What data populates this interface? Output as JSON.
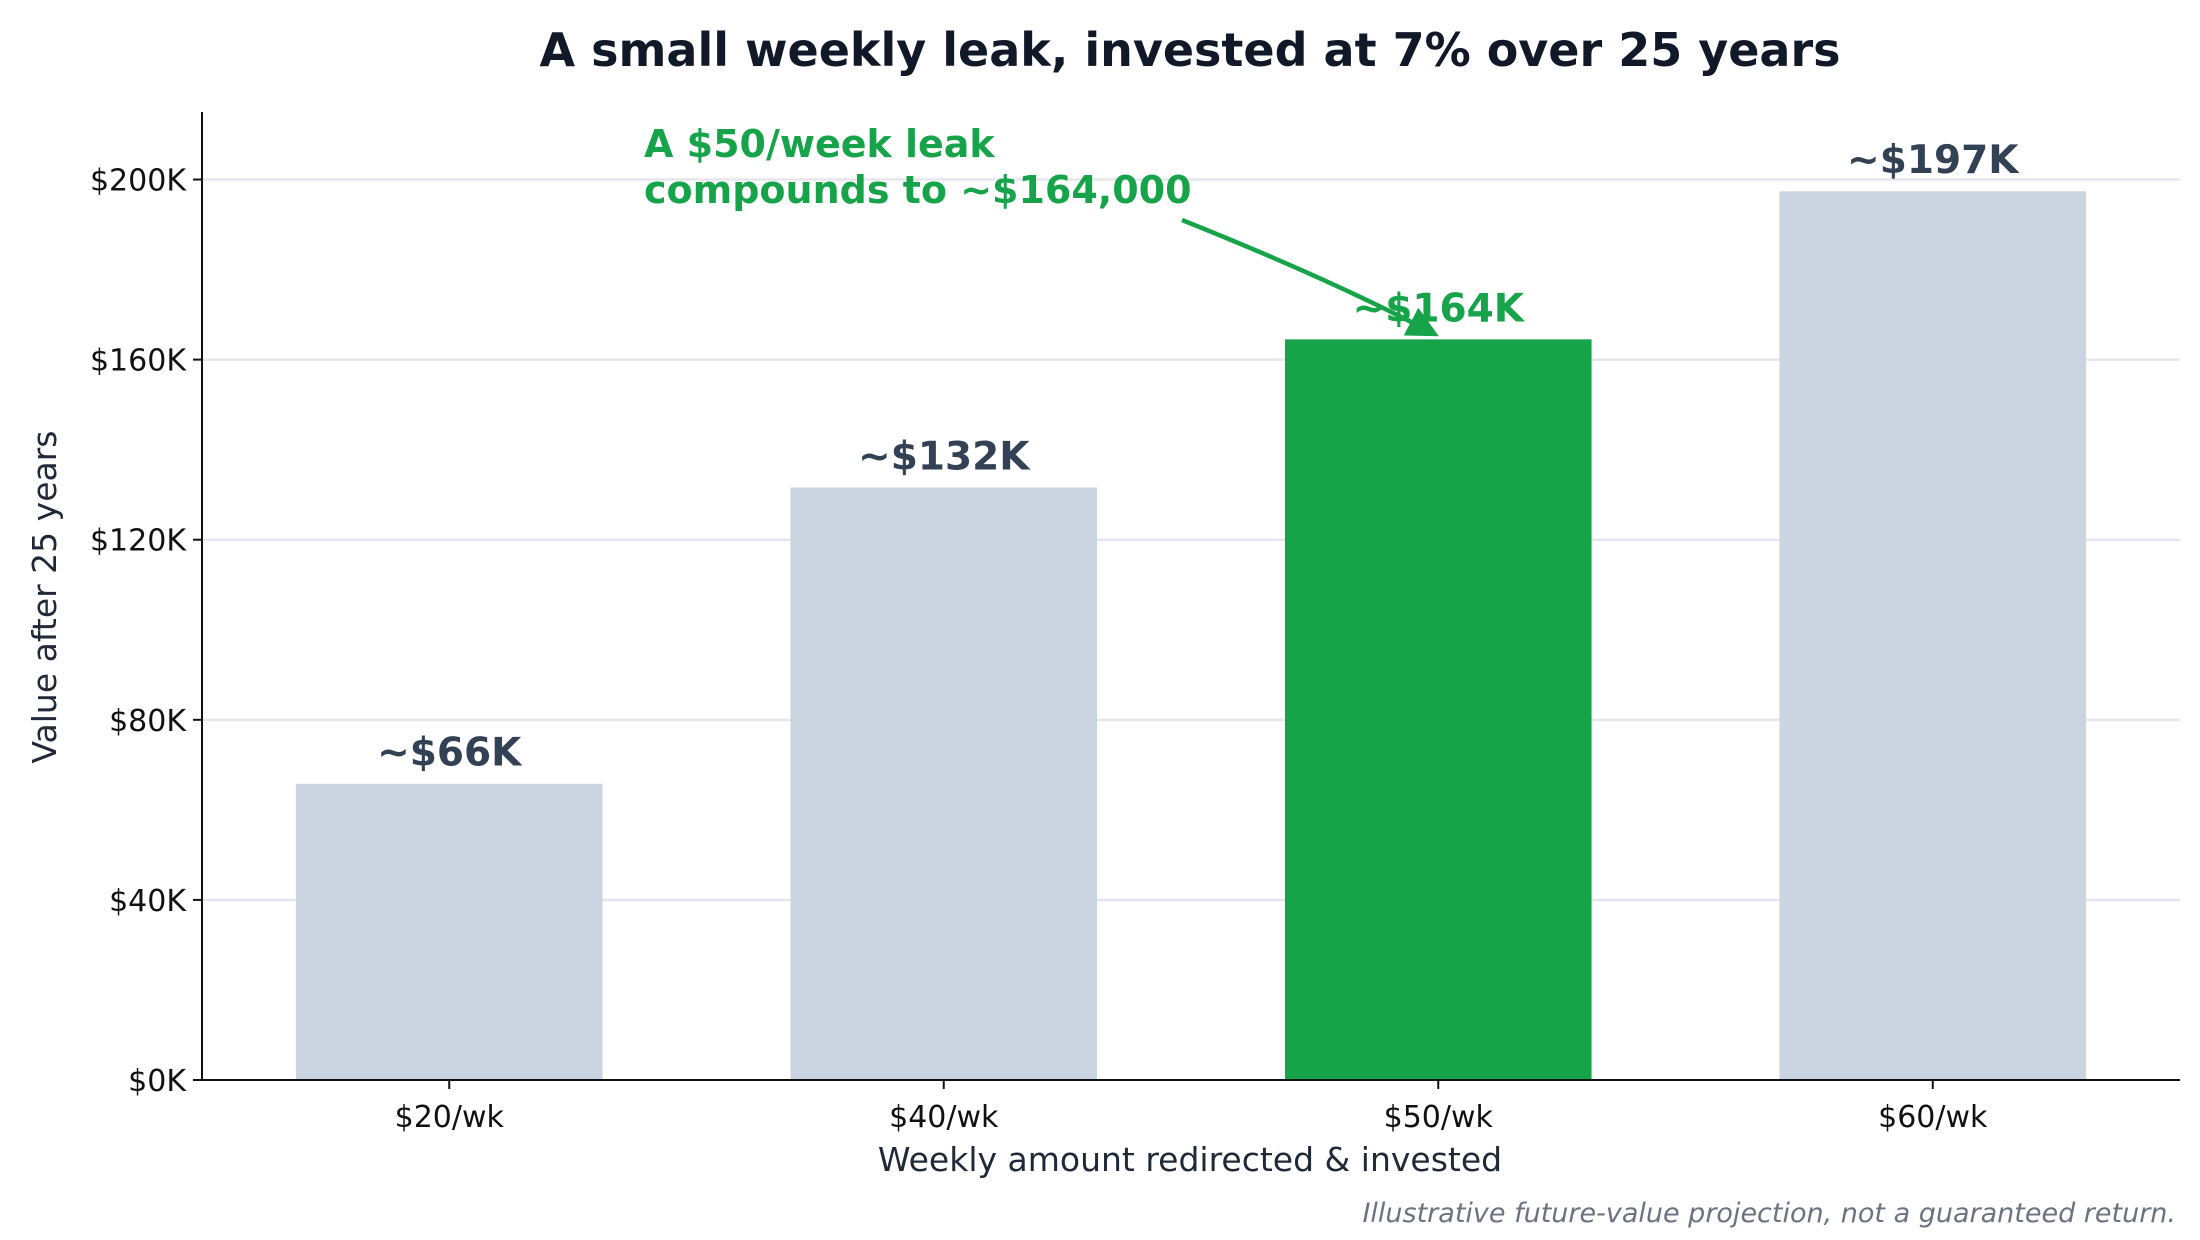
{
  "chart_data": {
    "type": "bar",
    "title": "A small weekly leak, invested at 7% over 25 years",
    "xlabel": "Weekly amount redirected & invested",
    "ylabel": "Value after 25 years",
    "categories": [
      "$20/wk",
      "$40/wk",
      "$50/wk",
      "$60/wk"
    ],
    "values": [
      65800,
      131600,
      164500,
      197400
    ],
    "data_labels": [
      "~$66K",
      "~$132K",
      "~$164K",
      "~$197K"
    ],
    "highlight_index": 2,
    "ylim": [
      0,
      215000
    ],
    "yticks": [
      0,
      40000,
      80000,
      120000,
      160000,
      200000
    ],
    "ytick_labels": [
      "$0K",
      "$40K",
      "$80K",
      "$120K",
      "$160K",
      "$200K"
    ],
    "grid": "horizontal",
    "colors": {
      "bar": "#cbd5e1",
      "highlight": "#16a34a",
      "label": "#334155",
      "grid": "#e5e7eb",
      "axis": "#111111"
    },
    "annotation": {
      "lines": [
        "A $50/week leak",
        "compounds to ~$164,000"
      ],
      "target_index": 2
    },
    "footnote": "Illustrative future-value projection, not a guaranteed return."
  }
}
